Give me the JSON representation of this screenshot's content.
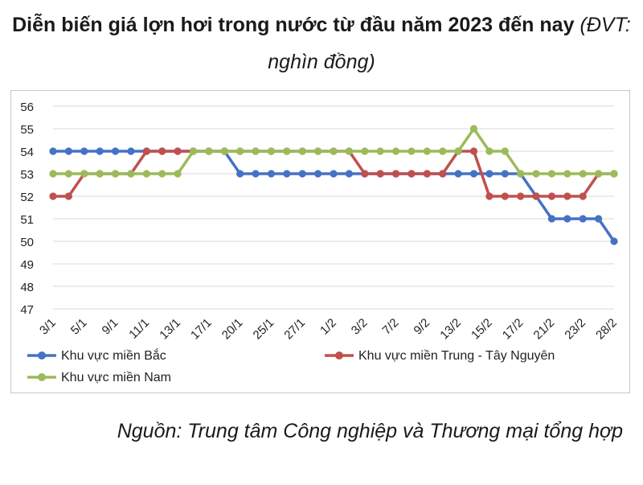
{
  "title": {
    "main": "Diễn biến giá lợn hơi trong nước từ đầu năm 2023 đến nay",
    "unit": "(ĐVT: nghìn đồng)"
  },
  "source": "Nguồn: Trung tâm Công nghiệp và Thương mại tổng hợp",
  "chart_data": {
    "type": "line",
    "title": "Diễn biến giá lợn hơi trong nước từ đầu năm 2023 đến nay",
    "unit": "(ĐVT: nghìn đồng)",
    "ylim": [
      47,
      56
    ],
    "yticks": [
      47,
      48,
      49,
      50,
      51,
      52,
      53,
      54,
      55,
      56
    ],
    "grid": true,
    "legend_position": "bottom",
    "x": [
      "3/1",
      "4/1",
      "5/1",
      "6/1",
      "9/1",
      "10/1",
      "11/1",
      "12/1",
      "13/1",
      "16/1",
      "17/1",
      "18/1",
      "20/1",
      "24/1",
      "25/1",
      "26/1",
      "27/1",
      "30/1",
      "1/2",
      "2/2",
      "3/2",
      "6/2",
      "7/2",
      "8/2",
      "9/2",
      "10/2",
      "13/2",
      "14/2",
      "15/2",
      "16/2",
      "17/2",
      "20/2",
      "21/2",
      "22/2",
      "23/2",
      "27/2",
      "28/2"
    ],
    "xtick_labels": [
      "3/1",
      "5/1",
      "9/1",
      "11/1",
      "13/1",
      "17/1",
      "20/1",
      "25/1",
      "27/1",
      "1/2",
      "3/2",
      "7/2",
      "9/2",
      "13/2",
      "15/2",
      "17/2",
      "21/2",
      "23/2",
      "28/2"
    ],
    "series": [
      {
        "name": "Khu vực miền Bắc",
        "color": "#4472c4",
        "values": [
          54,
          54,
          54,
          54,
          54,
          54,
          54,
          54,
          54,
          54,
          54,
          54,
          53,
          53,
          53,
          53,
          53,
          53,
          53,
          53,
          53,
          53,
          53,
          53,
          53,
          53,
          53,
          53,
          53,
          53,
          53,
          52,
          51,
          51,
          51,
          51,
          50
        ]
      },
      {
        "name": "Khu vực miền Trung - Tây Nguyên",
        "color": "#c0504d",
        "values": [
          52,
          52,
          53,
          53,
          53,
          53,
          54,
          54,
          54,
          54,
          54,
          54,
          54,
          54,
          54,
          54,
          54,
          54,
          54,
          54,
          53,
          53,
          53,
          53,
          53,
          53,
          54,
          54,
          52,
          52,
          52,
          52,
          52,
          52,
          52,
          53,
          53
        ]
      },
      {
        "name": "Khu vực miền Nam",
        "color": "#9bbb59",
        "values": [
          53,
          53,
          53,
          53,
          53,
          53,
          53,
          53,
          53,
          54,
          54,
          54,
          54,
          54,
          54,
          54,
          54,
          54,
          54,
          54,
          54,
          54,
          54,
          54,
          54,
          54,
          54,
          55,
          54,
          54,
          53,
          53,
          53,
          53,
          53,
          53,
          53
        ]
      }
    ]
  }
}
